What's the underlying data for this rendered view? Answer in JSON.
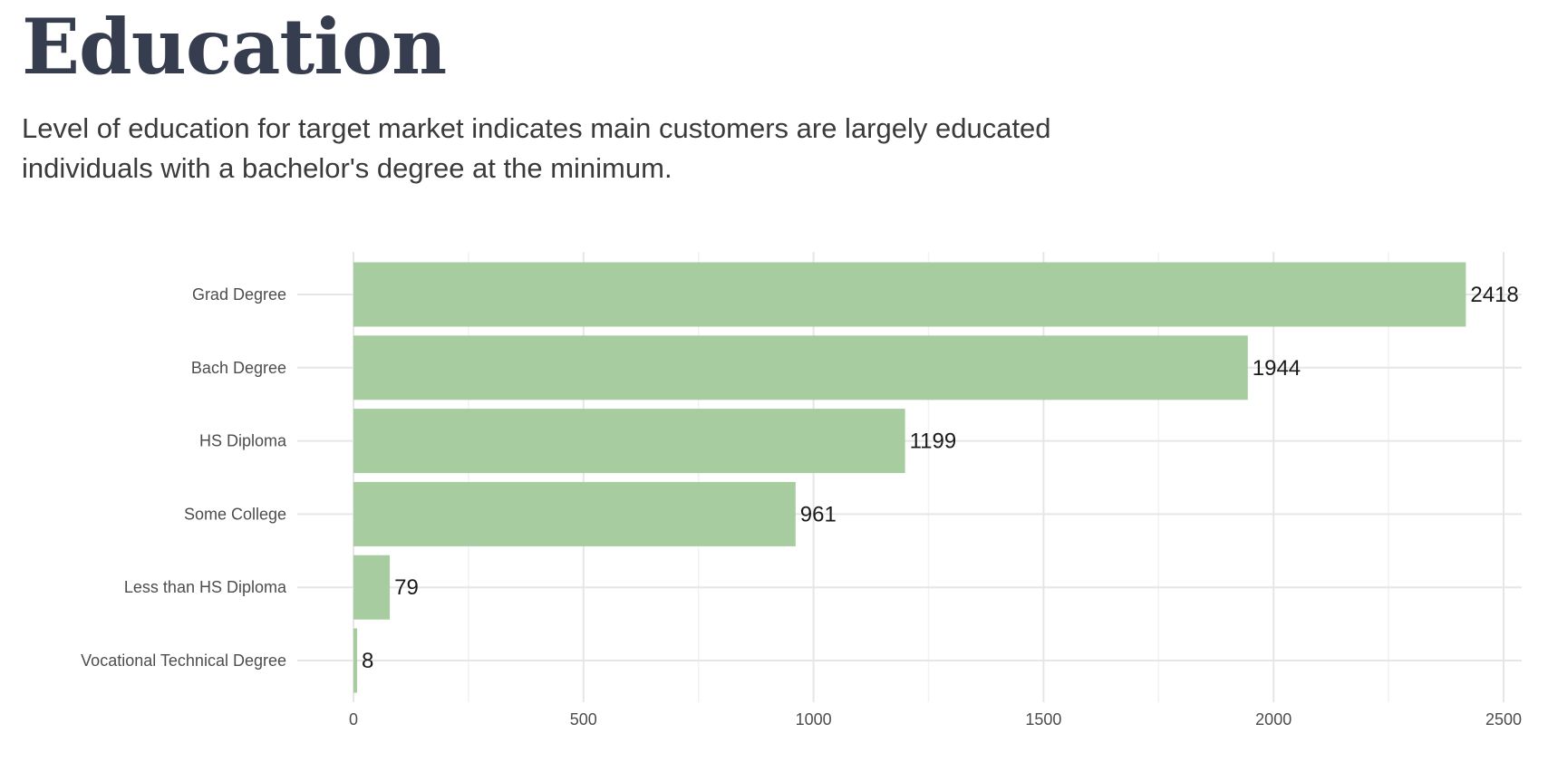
{
  "header": {
    "title": "Education",
    "subtitle": "Level of education for target market indicates main customers are largely educated individuals with a bachelor's degree at the minimum."
  },
  "colors": {
    "bar": "#a6cc9f",
    "grid_major": "#e6e6e6",
    "grid_minor": "#f2f2f2",
    "title": "#363d4f"
  },
  "chart_data": {
    "type": "bar",
    "orientation": "horizontal",
    "categories": [
      "Grad Degree",
      "Bach Degree",
      "HS Diploma",
      "Some College",
      "Less than HS Diploma",
      "Vocational Technical Degree"
    ],
    "values": [
      2418,
      1944,
      1199,
      961,
      79,
      8
    ],
    "data_labels": [
      "2418",
      "1944",
      "1199",
      "961",
      "79",
      "8"
    ],
    "xticks": [
      0,
      500,
      1000,
      1500,
      2000,
      2500
    ],
    "xtick_labels": [
      "0",
      "500",
      "1000",
      "1500",
      "2000",
      "2500"
    ],
    "xlim": [
      0,
      2500
    ],
    "xlabel": "",
    "ylabel": "",
    "grid": true,
    "legend": "none"
  }
}
